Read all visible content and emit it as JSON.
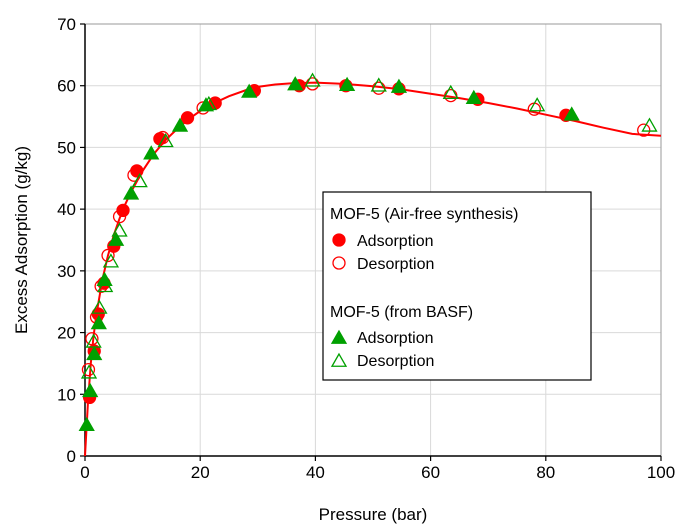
{
  "chart_data": {
    "type": "scatter",
    "xlabel": "Pressure (bar)",
    "ylabel": "Excess Adsorption (g/kg)",
    "xlim": [
      0,
      100
    ],
    "ylim": [
      0,
      70
    ],
    "xticks": [
      0,
      20,
      40,
      60,
      80,
      100
    ],
    "yticks": [
      0,
      10,
      20,
      30,
      40,
      50,
      60,
      70
    ],
    "grid": true,
    "legend_position": "center-right",
    "fit_curve": {
      "color": "#ff0000",
      "x": [
        0,
        0.5,
        1,
        1.5,
        2,
        3,
        4,
        5,
        6,
        7,
        8,
        10,
        12,
        14,
        16,
        18,
        20,
        22,
        25,
        28,
        30,
        33,
        36,
        40,
        45,
        50,
        55,
        60,
        65,
        70,
        75,
        80,
        85,
        90,
        95,
        100
      ],
      "y": [
        0,
        8.5,
        15,
        19.5,
        23,
        28.5,
        32.5,
        35.8,
        38.5,
        40.8,
        42.8,
        46.2,
        49.0,
        51.2,
        53.0,
        54.6,
        55.9,
        57.0,
        58.3,
        59.3,
        59.8,
        60.2,
        60.4,
        60.5,
        60.3,
        59.9,
        59.4,
        58.7,
        58.0,
        57.2,
        56.3,
        55.3,
        54.3,
        53.2,
        52.2,
        51.9
      ]
    },
    "legend_groups": [
      {
        "title": "MOF-5 (Air-free synthesis)",
        "entries": [
          "Adsorption",
          "Desorption"
        ]
      },
      {
        "title": "MOF-5 (from BASF)",
        "entries": [
          "Adsorption",
          "Desorption"
        ]
      }
    ],
    "series": [
      {
        "name": "Adsorption",
        "group": "MOF-5 (Air-free synthesis)",
        "marker": "circle",
        "filled": true,
        "color": "#ff0000",
        "x": [
          0.8,
          1.6,
          2.3,
          3.3,
          5.0,
          6.6,
          9.0,
          13.0,
          17.8,
          22.6,
          29.4,
          37.2,
          45.3,
          54.5,
          68.2,
          83.5
        ],
        "y": [
          9.5,
          17.0,
          23.0,
          28.0,
          34.0,
          39.8,
          46.2,
          51.4,
          54.8,
          57.2,
          59.2,
          60.0,
          60.0,
          59.5,
          57.8,
          55.2
        ]
      },
      {
        "name": "Desorption",
        "group": "MOF-5 (Air-free synthesis)",
        "marker": "circle",
        "filled": false,
        "color": "#ff0000",
        "x": [
          0.6,
          1.2,
          2.0,
          2.8,
          4.0,
          6.0,
          8.5,
          13.5,
          20.5,
          39.5,
          51.0,
          63.5,
          78.0,
          97.0
        ],
        "y": [
          14.0,
          19.0,
          22.5,
          27.5,
          32.5,
          38.8,
          45.5,
          51.6,
          56.4,
          60.3,
          59.6,
          58.4,
          56.2,
          52.8
        ]
      },
      {
        "name": "Adsorption",
        "group": "MOF-5 (from BASF)",
        "marker": "triangle",
        "filled": true,
        "color": "#00a000",
        "x": [
          0.3,
          0.9,
          1.6,
          2.4,
          3.4,
          5.4,
          8.0,
          11.5,
          16.5,
          21.0,
          28.5,
          36.5,
          45.5,
          54.5,
          67.5,
          84.5
        ],
        "y": [
          5.0,
          10.5,
          16.5,
          21.5,
          28.5,
          35.0,
          42.5,
          49.0,
          53.5,
          56.8,
          59.0,
          60.2,
          60.1,
          59.8,
          58.0,
          55.3
        ]
      },
      {
        "name": "Desorption",
        "group": "MOF-5 (from BASF)",
        "marker": "triangle",
        "filled": false,
        "color": "#00a000",
        "x": [
          0.7,
          1.5,
          2.5,
          3.5,
          4.5,
          6.0,
          9.5,
          14.0,
          21.5,
          39.5,
          51.0,
          63.5,
          78.5,
          98.0
        ],
        "y": [
          13.5,
          18.5,
          24.0,
          27.5,
          31.5,
          36.5,
          44.5,
          51.0,
          57.0,
          60.8,
          60.0,
          58.8,
          56.8,
          53.5
        ]
      }
    ]
  }
}
